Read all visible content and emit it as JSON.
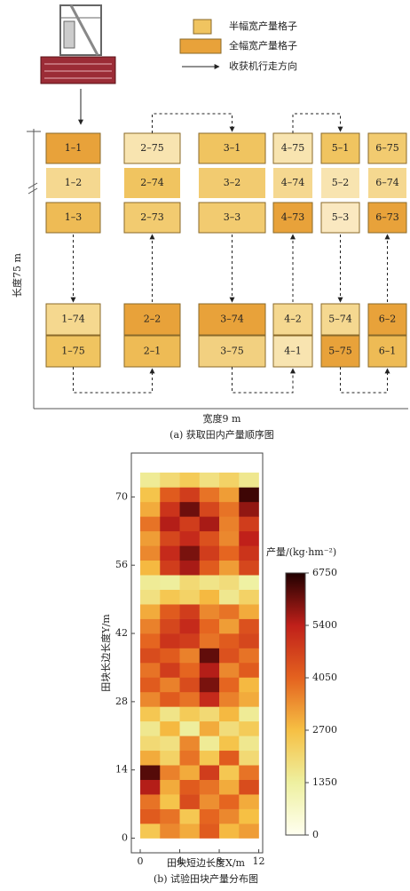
{
  "diagram": {
    "legend": [
      "半幅宽产量格子",
      "全幅宽产量格子",
      "收获机行走方向"
    ],
    "length_label": "长度75 m",
    "width_label": "宽度9 m",
    "caption": "(a) 获取田内产量顺序图",
    "columns": [
      {
        "top": [
          {
            "label": "1–1",
            "fill": "#e8a23a"
          },
          {
            "label": "1–2",
            "fill": "#f5d890"
          },
          {
            "label": "1–3",
            "fill": "#eebb55"
          }
        ],
        "bottom": [
          {
            "label": "1–74",
            "fill": "#f5d88f"
          },
          {
            "label": "1–75",
            "fill": "#f0c460"
          }
        ]
      },
      {
        "top": [
          {
            "label": "2–75",
            "fill": "#f8e4b0"
          },
          {
            "label": "2–74",
            "fill": "#f0c460"
          },
          {
            "label": "2–73",
            "fill": "#f2cb70"
          }
        ],
        "bottom": [
          {
            "label": "2–2",
            "fill": "#e8a23a"
          },
          {
            "label": "2–1",
            "fill": "#eebb55"
          }
        ]
      },
      {
        "top": [
          {
            "label": "3–1",
            "fill": "#f0c460"
          },
          {
            "label": "3–2",
            "fill": "#f2cb70"
          },
          {
            "label": "3–3",
            "fill": "#f2cb70"
          }
        ],
        "bottom": [
          {
            "label": "3–74",
            "fill": "#e8a23a"
          },
          {
            "label": "3–75",
            "fill": "#f2d080"
          }
        ]
      },
      {
        "top": [
          {
            "label": "4–75",
            "fill": "#f8e4b0"
          },
          {
            "label": "4–74",
            "fill": "#f5d890"
          },
          {
            "label": "4–73",
            "fill": "#e8a23a"
          }
        ],
        "bottom": [
          {
            "label": "4–2",
            "fill": "#f5d890"
          },
          {
            "label": "4–1",
            "fill": "#f8e4b0"
          }
        ]
      },
      {
        "top": [
          {
            "label": "5–1",
            "fill": "#f0c460"
          },
          {
            "label": "5–2",
            "fill": "#f8e4b0"
          },
          {
            "label": "5–3",
            "fill": "#fae8c0"
          }
        ],
        "bottom": [
          {
            "label": "5–74",
            "fill": "#f5d890"
          },
          {
            "label": "5–75",
            "fill": "#e8a23a"
          }
        ]
      },
      {
        "top": [
          {
            "label": "6–75",
            "fill": "#f2cb70"
          },
          {
            "label": "6–74",
            "fill": "#f5d890"
          },
          {
            "label": "6–73",
            "fill": "#e8a23a"
          }
        ],
        "bottom": [
          {
            "label": "6–2",
            "fill": "#e8a23a"
          },
          {
            "label": "6–1",
            "fill": "#eebb55"
          }
        ]
      }
    ]
  },
  "chart_data": {
    "type": "heatmap",
    "caption": "(b) 试验田块产量分布图",
    "xlabel": "田块短边长度X/m",
    "ylabel": "田块长边长度Y/m",
    "colorbar_label": "产量/(kg·hm⁻²)",
    "xlim": [
      -0.9,
      12.4
    ],
    "ylim": [
      -3,
      79
    ],
    "xticks": [
      0,
      4,
      8,
      12
    ],
    "yticks": [
      0,
      14,
      28,
      42,
      56,
      70
    ],
    "xbins": [
      0,
      2,
      4,
      6,
      8,
      10,
      12
    ],
    "ybins": [
      0,
      3,
      6,
      9,
      12,
      15,
      18,
      21,
      24,
      27,
      30,
      33,
      36,
      39,
      42,
      45,
      48,
      51,
      54,
      57,
      60,
      63,
      66,
      69,
      72,
      75
    ],
    "clim": [
      0,
      6750
    ],
    "cticks": [
      0,
      1350,
      2700,
      4050,
      5400,
      6750
    ],
    "colorscale": [
      "#fffff0",
      "#eef0a0",
      "#f6c044",
      "#e4621f",
      "#c0201a",
      "#200000"
    ],
    "z": [
      [
        2500,
        3500,
        3000,
        4200,
        2800,
        3200
      ],
      [
        4200,
        3800,
        2500,
        4000,
        3500,
        2700
      ],
      [
        3800,
        2600,
        4500,
        3400,
        4000,
        3000
      ],
      [
        5500,
        3000,
        4200,
        3800,
        3000,
        4500
      ],
      [
        6300,
        3600,
        3000,
        4800,
        2500,
        3800
      ],
      [
        3000,
        2200,
        3800,
        2500,
        4200,
        2000
      ],
      [
        2000,
        1800,
        3500,
        1500,
        2600,
        1600
      ],
      [
        1600,
        2800,
        1400,
        3000,
        1900,
        2400
      ],
      [
        2500,
        1700,
        2400,
        2000,
        2800,
        1500
      ],
      [
        3500,
        4200,
        3800,
        5200,
        3600,
        3000
      ],
      [
        4200,
        3600,
        4500,
        6000,
        4000,
        2800
      ],
      [
        3800,
        4800,
        4000,
        5500,
        3500,
        4200
      ],
      [
        4500,
        4200,
        3600,
        6200,
        4400,
        3800
      ],
      [
        4000,
        5000,
        4800,
        3800,
        4200,
        4600
      ],
      [
        3600,
        4600,
        5200,
        4000,
        3200,
        4400
      ],
      [
        3000,
        4200,
        4800,
        3500,
        3800,
        3000
      ],
      [
        1800,
        2500,
        2200,
        2800,
        1600,
        2200
      ],
      [
        1500,
        1400,
        2000,
        1700,
        1900,
        1300
      ],
      [
        2800,
        4800,
        5600,
        4200,
        3200,
        4600
      ],
      [
        3500,
        5200,
        6000,
        4800,
        4000,
        5000
      ],
      [
        3200,
        4600,
        5200,
        4400,
        3500,
        5400
      ],
      [
        3800,
        5500,
        4800,
        5600,
        3600,
        4800
      ],
      [
        3000,
        5000,
        6100,
        4600,
        3800,
        5800
      ],
      [
        2600,
        4200,
        4800,
        3800,
        3200,
        6500
      ],
      [
        1500,
        2000,
        2400,
        1800,
        2200,
        1600
      ]
    ]
  }
}
